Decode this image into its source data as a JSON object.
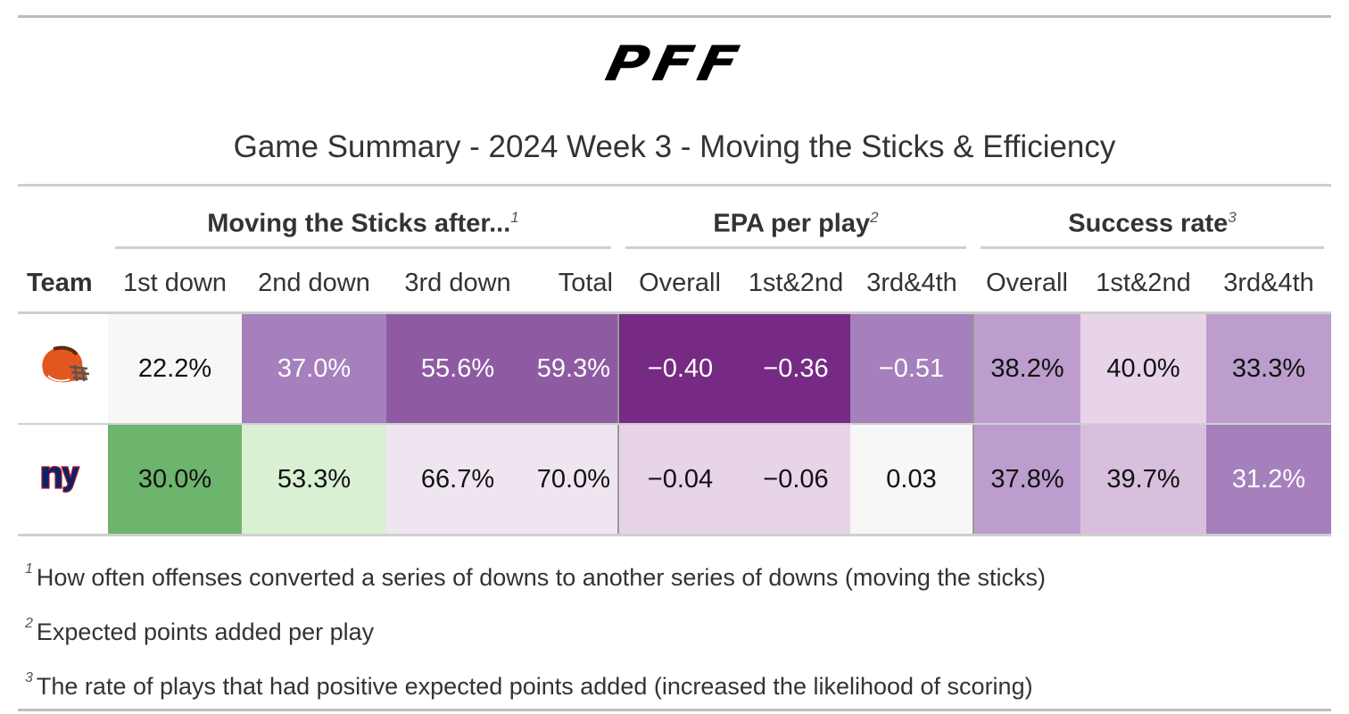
{
  "logo": {
    "text": "PFF"
  },
  "title": "Game Summary - 2024 Week 3 - Moving the Sticks & Efficiency",
  "groups": [
    {
      "label": "Moving the Sticks after...",
      "marker": "1"
    },
    {
      "label": "EPA per play",
      "marker": "2"
    },
    {
      "label": "Success rate",
      "marker": "3"
    }
  ],
  "columns": [
    "Team",
    "1st down",
    "2nd down",
    "3rd down",
    "Total",
    "Overall",
    "1st&2nd",
    "3rd&4th",
    "Overall",
    "1st&2nd",
    "3rd&4th"
  ],
  "rows": [
    {
      "team_icon": "browns-helmet-icon",
      "cells": [
        "22.2%",
        "37.0%",
        "55.6%",
        "59.3%",
        "−0.40",
        "−0.36",
        "−0.51",
        "38.2%",
        "40.0%",
        "33.3%"
      ]
    },
    {
      "team_icon": "giants-ny-logo-icon",
      "cells": [
        "30.0%",
        "53.3%",
        "66.7%",
        "70.0%",
        "−0.04",
        "−0.06",
        "0.03",
        "37.8%",
        "39.7%",
        "31.2%"
      ]
    }
  ],
  "colors": {
    "row1": [
      "#f7f7f7",
      "#a67fbd",
      "#8e5ba2",
      "#8e5ba2",
      "#762a83",
      "#762a83",
      "#a67fbd",
      "#bd9dce",
      "#e7d4e8",
      "#bd9dce"
    ],
    "row2": [
      "#6db46d",
      "#d9f0d3",
      "#efe5f0",
      "#efe5f0",
      "#e7d4e8",
      "#e7d4e8",
      "#f7f7f7",
      "#bd9dce",
      "#d8bfdd",
      "#a67fbd"
    ]
  },
  "footnotes": [
    {
      "marker": "1",
      "text": "How often offenses converted a series of downs to another series of downs (moving the sticks)"
    },
    {
      "marker": "2",
      "text": "Expected points added per play"
    },
    {
      "marker": "3",
      "text": "The rate of plays that had positive expected points added (increased the likelihood of scoring)"
    }
  ]
}
